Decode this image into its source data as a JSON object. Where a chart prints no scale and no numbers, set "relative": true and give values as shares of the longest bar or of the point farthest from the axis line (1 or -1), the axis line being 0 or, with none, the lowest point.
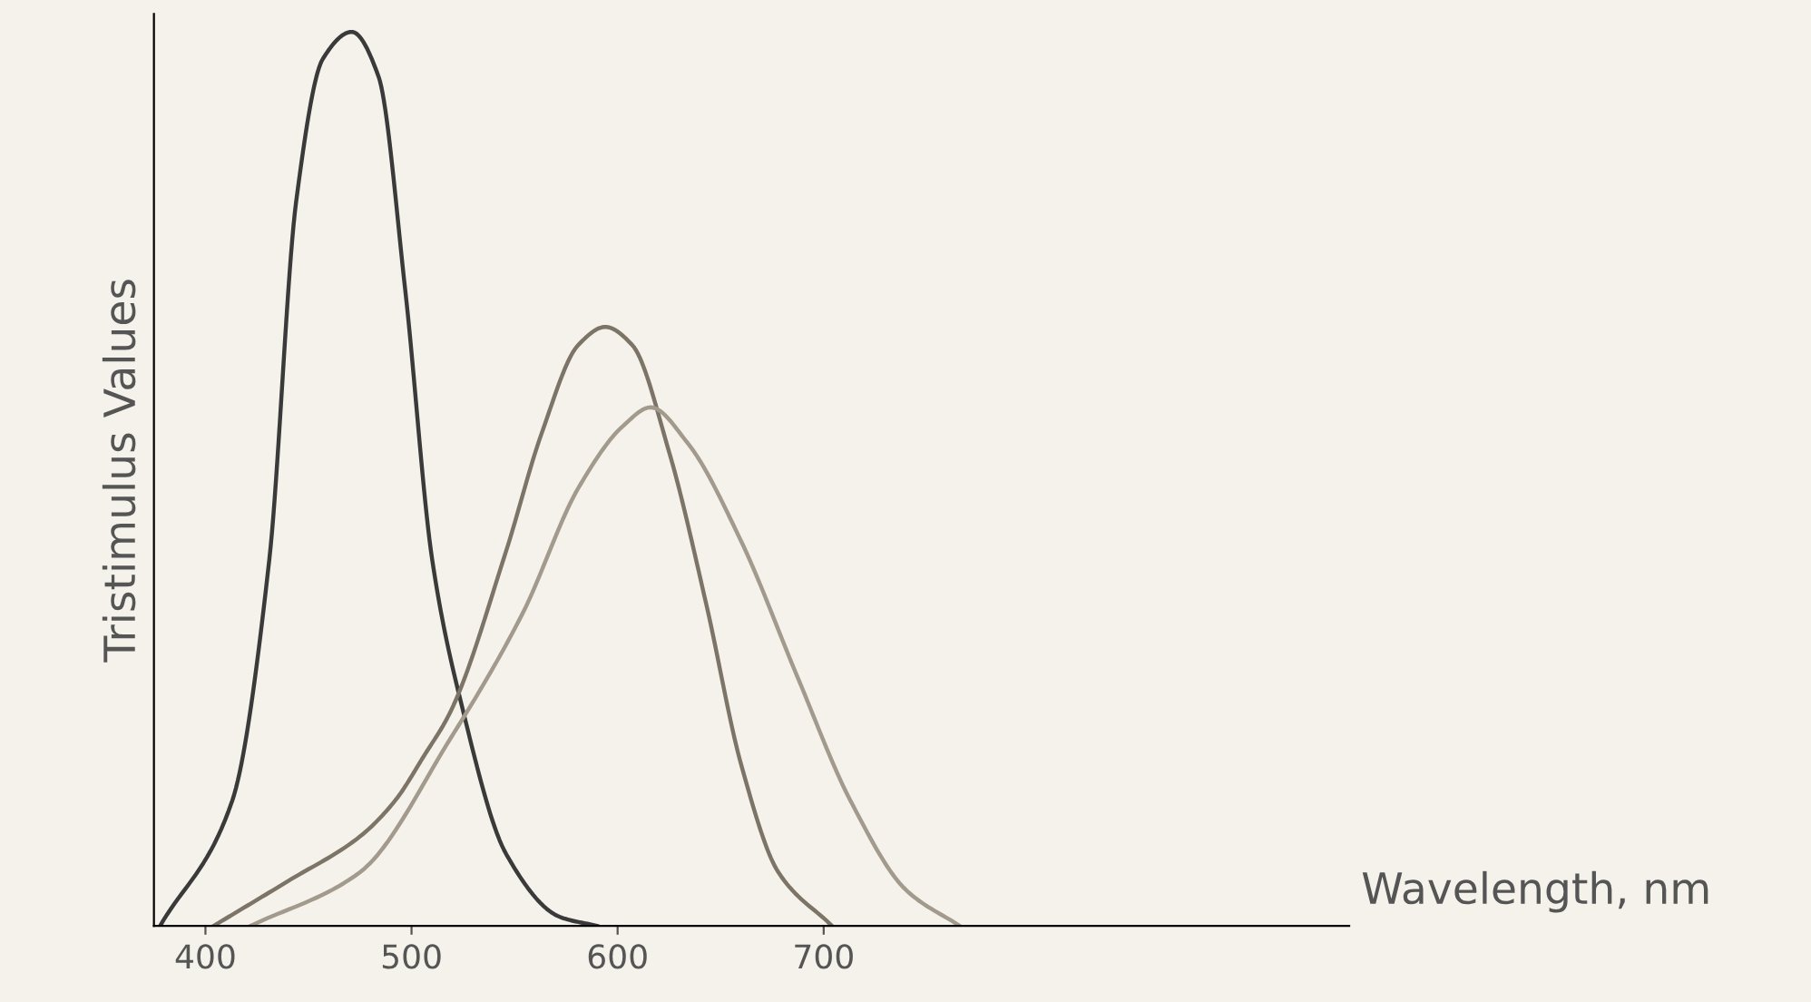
{
  "chart_data": {
    "type": "line",
    "relative": true,
    "xlabel": "Wavelength, nm",
    "ylabel": "Tristimulus Values",
    "xlim": [
      375,
      955
    ],
    "xticks": [
      400,
      500,
      600,
      700
    ],
    "grid": false,
    "marker": "none",
    "line_style": "solid",
    "series": [
      {
        "color": "#3a3a3a",
        "x": [
          378,
          413,
          431,
          444,
          457,
          471,
          484,
          497,
          510,
          524,
          546,
          572,
          590
        ],
        "values": [
          0,
          0.14,
          0.41,
          0.81,
          0.97,
          1,
          0.95,
          0.71,
          0.41,
          0.25,
          0.08,
          0.01,
          0
        ]
      },
      {
        "color": "#7d7468",
        "x": [
          404,
          440,
          475,
          492,
          506,
          519,
          546,
          563,
          581,
          594,
          607,
          625,
          643,
          660,
          678,
          704
        ],
        "values": [
          0,
          0.05,
          0.1,
          0.14,
          0.19,
          0.24,
          0.42,
          0.55,
          0.65,
          0.67,
          0.65,
          0.53,
          0.36,
          0.18,
          0.06,
          0
        ]
      },
      {
        "color": "#a39a8e",
        "x": [
          422,
          475,
          519,
          554,
          581,
          603,
          616,
          634,
          660,
          687,
          713,
          740,
          766
        ],
        "values": [
          0,
          0.06,
          0.21,
          0.35,
          0.49,
          0.56,
          0.58,
          0.54,
          0.43,
          0.28,
          0.14,
          0.04,
          0
        ]
      }
    ]
  }
}
